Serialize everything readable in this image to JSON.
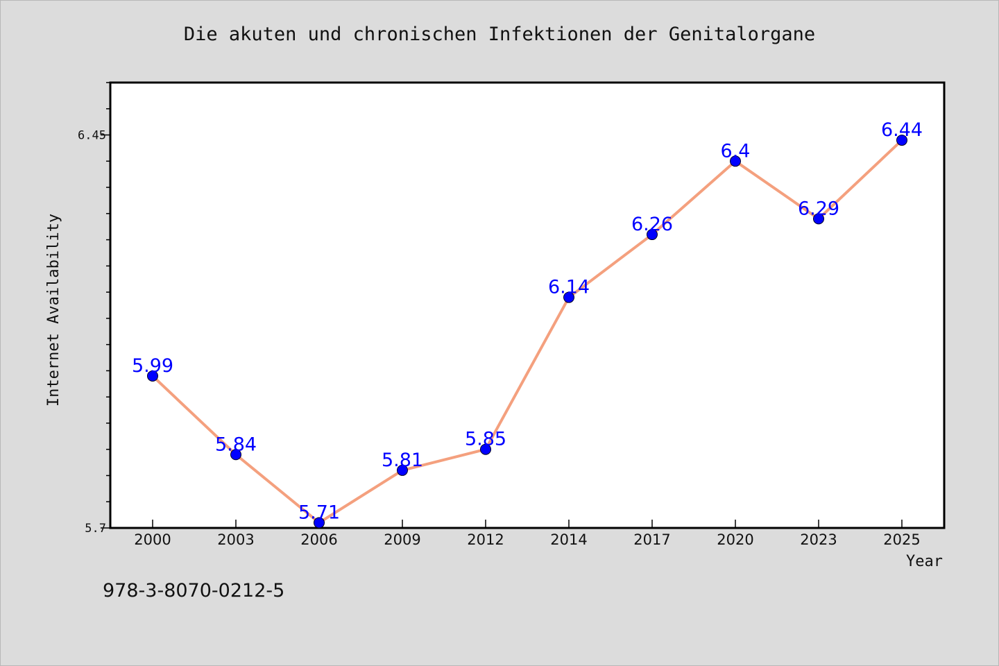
{
  "chart_data": {
    "type": "line",
    "title": "Die akuten und chronischen Infektionen der Genitalorgane",
    "xlabel": "Year",
    "ylabel": "Internet Availability",
    "categories": [
      "2000",
      "2003",
      "2006",
      "2009",
      "2012",
      "2014",
      "2017",
      "2020",
      "2023",
      "2025"
    ],
    "series": [
      {
        "values": [
          5.99,
          5.84,
          5.71,
          5.81,
          5.85,
          6.14,
          6.26,
          6.4,
          6.29,
          6.44
        ],
        "labels": [
          "5.99",
          "5.84",
          "5.71",
          "5.81",
          "5.85",
          "6.14",
          "6.26",
          "6.4",
          "6.29",
          "6.44"
        ]
      }
    ],
    "ylim": [
      5.7,
      6.55
    ],
    "yticks": [
      5.7,
      6.45
    ],
    "ytick_labels": [
      "5.7",
      "6.45"
    ],
    "y_minor_step": 0.05,
    "grid": false,
    "legend": "none",
    "colors": {
      "line": "#f4a07e",
      "marker": "#0000ff",
      "data_label": "#0000ff",
      "background": "#dcdcdc",
      "plot_background": "#ffffff"
    }
  },
  "footer": {
    "isbn": "978-3-8070-0212-5"
  }
}
